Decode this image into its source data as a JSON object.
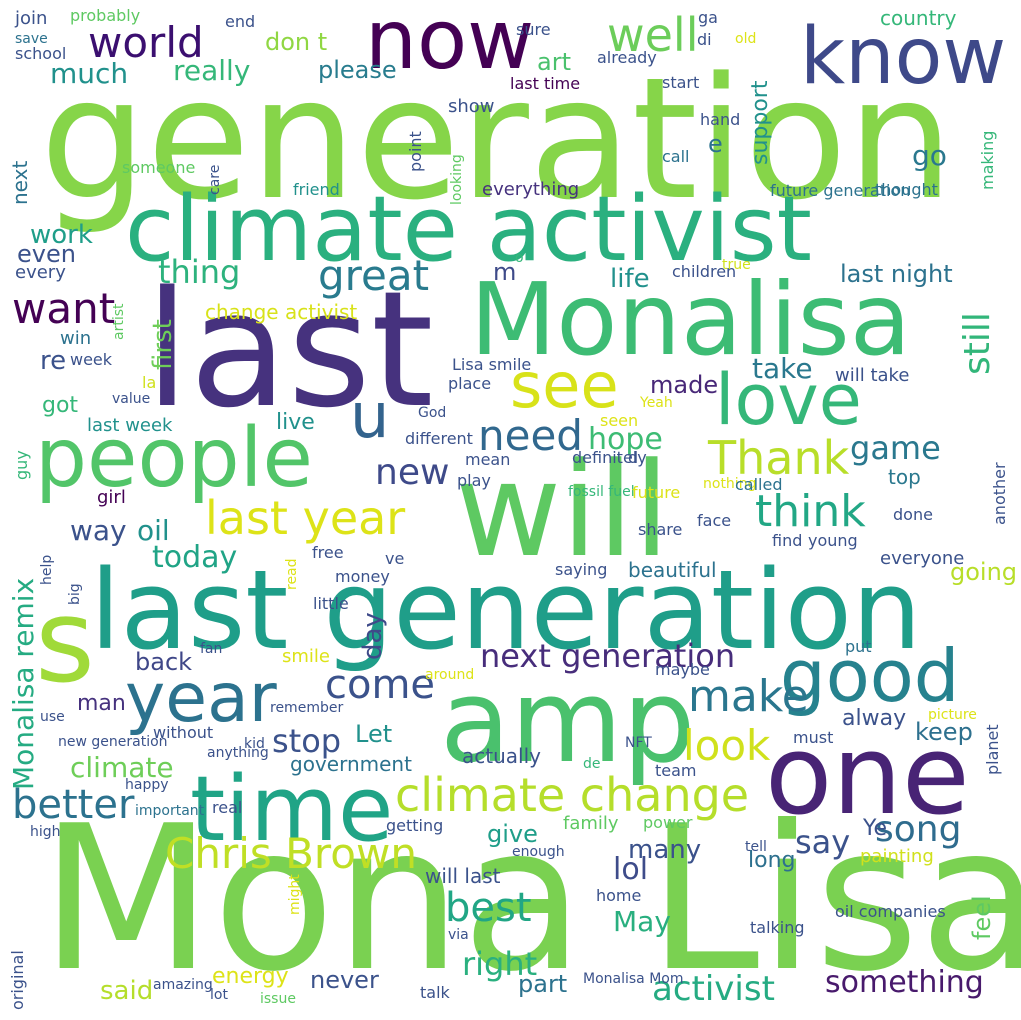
{
  "words": [
    {
      "text": "Mona Lisa",
      "color": "#7ad151"
    },
    {
      "text": "generation",
      "color": "#86d549"
    },
    {
      "text": "last",
      "color": "#46327e"
    },
    {
      "text": "will",
      "color": "#5ec962"
    },
    {
      "text": "last generation",
      "color": "#1f9e89"
    },
    {
      "text": "Monalisa",
      "color": "#3dbc74"
    },
    {
      "text": "climate activist",
      "color": "#2ab07f"
    },
    {
      "text": "one",
      "color": "#482475"
    },
    {
      "text": "amp",
      "color": "#4ac16d"
    },
    {
      "text": "now",
      "color": "#440154"
    },
    {
      "text": "know",
      "color": "#3e4989"
    },
    {
      "text": "time",
      "color": "#20a486"
    },
    {
      "text": "s",
      "color": "#a0da39"
    },
    {
      "text": "people",
      "color": "#52c569"
    },
    {
      "text": "good",
      "color": "#26828e"
    },
    {
      "text": "year",
      "color": "#2c728e"
    },
    {
      "text": "love",
      "color": "#35b779"
    },
    {
      "text": "see",
      "color": "#d8e219"
    },
    {
      "text": "u",
      "color": "#33638d"
    },
    {
      "text": "climate change",
      "color": "#b5de2b"
    },
    {
      "text": "last year",
      "color": "#dde318"
    },
    {
      "text": "Chris Brown",
      "color": "#c0df25"
    },
    {
      "text": "think",
      "color": "#22a785"
    },
    {
      "text": "make",
      "color": "#2a768e"
    },
    {
      "text": "great",
      "color": "#297b8e"
    },
    {
      "text": "look",
      "color": "#d0e11c"
    },
    {
      "text": "come",
      "color": "#3b528b"
    },
    {
      "text": "world",
      "color": "#3b0f70"
    },
    {
      "text": "well",
      "color": "#6ccd5a"
    },
    {
      "text": "Thank",
      "color": "#b8de29"
    },
    {
      "text": "need",
      "color": "#31688e"
    },
    {
      "text": "want",
      "color": "#440154"
    },
    {
      "text": "best",
      "color": "#21a685"
    },
    {
      "text": "activist",
      "color": "#25ab82"
    },
    {
      "text": "song",
      "color": "#2f6c8e"
    },
    {
      "text": "next generation",
      "color": "#472d7b"
    },
    {
      "text": "better",
      "color": "#32b67a"
    },
    {
      "text": "still",
      "color": "#2c728e"
    },
    {
      "text": "new",
      "color": "#3e4a89"
    },
    {
      "text": "stop",
      "color": "#3b528b"
    },
    {
      "text": "right",
      "color": "#2ab07f"
    },
    {
      "text": "Monalisa remix",
      "color": "#25ab82"
    },
    {
      "text": "something",
      "color": "#481a6c"
    },
    {
      "text": "game",
      "color": "#2a788e"
    },
    {
      "text": "hope",
      "color": "#3dbc74"
    },
    {
      "text": "today",
      "color": "#20a486"
    },
    {
      "text": "say",
      "color": "#3b528b"
    },
    {
      "text": "climate",
      "color": "#6ece58"
    },
    {
      "text": "lol",
      "color": "#3e4c8a"
    },
    {
      "text": "May",
      "color": "#29af7f"
    },
    {
      "text": "thing",
      "color": "#2db27d"
    },
    {
      "text": "really",
      "color": "#35b779"
    },
    {
      "text": "much",
      "color": "#21918c"
    },
    {
      "text": "please",
      "color": "#287c8e"
    },
    {
      "text": "don t",
      "color": "#90d743"
    },
    {
      "text": "many",
      "color": "#3b528b"
    },
    {
      "text": "said",
      "color": "#b5de2b"
    },
    {
      "text": "part",
      "color": "#2c728e"
    },
    {
      "text": "take",
      "color": "#2a788e"
    },
    {
      "text": "made",
      "color": "#482878"
    },
    {
      "text": "keep",
      "color": "#2d708e"
    },
    {
      "text": "back",
      "color": "#3f4788"
    },
    {
      "text": "way",
      "color": "#3b528b"
    },
    {
      "text": "oil",
      "color": "#21918c"
    },
    {
      "text": "feel",
      "color": "#5ec962"
    },
    {
      "text": "life",
      "color": "#21918c"
    },
    {
      "text": "work",
      "color": "#1f9e89"
    },
    {
      "text": "even",
      "color": "#3b528b"
    },
    {
      "text": "never",
      "color": "#3b528b"
    },
    {
      "text": "go",
      "color": "#2a788e"
    },
    {
      "text": "last night",
      "color": "#2c728e"
    },
    {
      "text": "going",
      "color": "#b8de29"
    },
    {
      "text": "day",
      "color": "#3e4a89"
    },
    {
      "text": "Let",
      "color": "#21918c"
    },
    {
      "text": "give",
      "color": "#1f9e89"
    },
    {
      "text": "got",
      "color": "#35b779"
    },
    {
      "text": "first",
      "color": "#6ece58"
    },
    {
      "text": "support",
      "color": "#21918c"
    },
    {
      "text": "art",
      "color": "#4ac16d"
    },
    {
      "text": "e",
      "color": "#2c728e"
    },
    {
      "text": "m",
      "color": "#3e4a89"
    },
    {
      "text": "re",
      "color": "#3b528b"
    },
    {
      "text": "man",
      "color": "#46327e"
    },
    {
      "text": "alway",
      "color": "#3b528b"
    },
    {
      "text": "energy",
      "color": "#dde318"
    },
    {
      "text": "long",
      "color": "#2d708e"
    },
    {
      "text": "live",
      "color": "#21918c"
    },
    {
      "text": "Ye",
      "color": "#3b528b"
    },
    {
      "text": "will last",
      "color": "#3b528b"
    },
    {
      "text": "every",
      "color": "#3b528b"
    },
    {
      "text": "win",
      "color": "#2c728e"
    },
    {
      "text": "last week",
      "color": "#21918c"
    },
    {
      "text": "change activist",
      "color": "#d8e219"
    },
    {
      "text": "will take",
      "color": "#3b528b"
    },
    {
      "text": "top",
      "color": "#2a788e"
    },
    {
      "text": "government",
      "color": "#2c728e"
    },
    {
      "text": "actually",
      "color": "#3b528b"
    },
    {
      "text": "family",
      "color": "#5ec962"
    },
    {
      "text": "painting",
      "color": "#d0e11c"
    },
    {
      "text": "smile",
      "color": "#dde318"
    },
    {
      "text": "beautiful",
      "color": "#2c728e"
    },
    {
      "text": "everyone",
      "color": "#3b528b"
    },
    {
      "text": "show",
      "color": "#3b528b"
    },
    {
      "text": "country",
      "color": "#35b779"
    },
    {
      "text": "sure",
      "color": "#3b528b"
    },
    {
      "text": "join",
      "color": "#3b528b"
    },
    {
      "text": "probably",
      "color": "#5ec962"
    },
    {
      "text": "end",
      "color": "#3b528b"
    },
    {
      "text": "save",
      "color": "#2c728e"
    },
    {
      "text": "school",
      "color": "#3b528b"
    },
    {
      "text": "ga",
      "color": "#3b528b"
    },
    {
      "text": "old",
      "color": "#dde318"
    },
    {
      "text": "already",
      "color": "#3b528b"
    },
    {
      "text": "di",
      "color": "#3b528b"
    },
    {
      "text": "start",
      "color": "#3b528b"
    },
    {
      "text": "last time",
      "color": "#440154"
    },
    {
      "text": "hand",
      "color": "#3b528b"
    },
    {
      "text": "call",
      "color": "#2c728e"
    },
    {
      "text": "point",
      "color": "#3b528b"
    },
    {
      "text": "care",
      "color": "#3b528b"
    },
    {
      "text": "friend",
      "color": "#5ec962"
    },
    {
      "text": "everything",
      "color": "#21918c"
    },
    {
      "text": "future generation",
      "color": "#46327e"
    },
    {
      "text": "thought",
      "color": "#2c728e"
    },
    {
      "text": "making",
      "color": "#2c728e"
    },
    {
      "text": "looking",
      "color": "#35b779"
    },
    {
      "text": "next",
      "color": "#2c728e"
    },
    {
      "text": "o",
      "color": "#5ec962"
    },
    {
      "text": "children",
      "color": "#5ec962"
    },
    {
      "text": "true",
      "color": "#35b779"
    },
    {
      "text": "week",
      "color": "#3b528b"
    },
    {
      "text": "Lisa smile",
      "color": "#d0e11c"
    },
    {
      "text": "place",
      "color": "#3b528b"
    },
    {
      "text": "la",
      "color": "#3b528b"
    },
    {
      "text": "value",
      "color": "#3b528b"
    },
    {
      "text": "God",
      "color": "#d0e11c"
    },
    {
      "text": "Yeah",
      "color": "#3b528b"
    },
    {
      "text": "seen",
      "color": "#3b528b"
    },
    {
      "text": "someone",
      "color": "#dde318"
    },
    {
      "text": "different",
      "color": "#dde318"
    },
    {
      "text": "definitely",
      "color": "#35b779"
    },
    {
      "text": "mean",
      "color": "#3b528b"
    },
    {
      "text": "d",
      "color": "#3b528b"
    },
    {
      "text": "play",
      "color": "#3b528b"
    },
    {
      "text": "nothing",
      "color": "#3b528b"
    },
    {
      "text": "called",
      "color": "#3b528b"
    },
    {
      "text": "girl",
      "color": "#dde318"
    },
    {
      "text": "fossil fuel",
      "color": "#2c728e"
    },
    {
      "text": "future",
      "color": "#440154"
    },
    {
      "text": "done",
      "color": "#35b779"
    },
    {
      "text": "guy",
      "color": "#dde318"
    },
    {
      "text": "share",
      "color": "#3b528b"
    },
    {
      "text": "face",
      "color": "#3b528b"
    },
    {
      "text": "find",
      "color": "#3b528b"
    },
    {
      "text": "young",
      "color": "#3b528b"
    },
    {
      "text": "help",
      "color": "#3b528b"
    },
    {
      "text": "another",
      "color": "#3b528b"
    },
    {
      "text": "free",
      "color": "#3b528b"
    },
    {
      "text": "ve",
      "color": "#dde318"
    },
    {
      "text": "money",
      "color": "#3b528b"
    },
    {
      "text": "artist",
      "color": "#3b528b"
    },
    {
      "text": "saying",
      "color": "#3b528b"
    },
    {
      "text": "little",
      "color": "#3b528b"
    },
    {
      "text": "fan",
      "color": "#3b528b"
    },
    {
      "text": "put",
      "color": "#3b528b"
    },
    {
      "text": "maybe",
      "color": "#3b528b"
    },
    {
      "text": "around",
      "color": "#2c728e"
    },
    {
      "text": "use",
      "color": "#3b528b"
    },
    {
      "text": "remember",
      "color": "#dde318"
    },
    {
      "text": "picture",
      "color": "#3b528b"
    },
    {
      "text": "new generation",
      "color": "#3b528b"
    },
    {
      "text": "without",
      "color": "#dde318"
    },
    {
      "text": "must",
      "color": "#3b528b"
    },
    {
      "text": "planet",
      "color": "#3b528b"
    },
    {
      "text": "anything",
      "color": "#3b528b"
    },
    {
      "text": "kid",
      "color": "#3b528b"
    },
    {
      "text": "NFT",
      "color": "#3b528b"
    },
    {
      "text": "de",
      "color": "#3b528b"
    },
    {
      "text": "team",
      "color": "#3b528b"
    },
    {
      "text": "happy",
      "color": "#35b779"
    },
    {
      "text": "important",
      "color": "#3b528b"
    },
    {
      "text": "real",
      "color": "#3b528b"
    },
    {
      "text": "power",
      "color": "#2c728e"
    },
    {
      "text": "high",
      "color": "#3b528b"
    },
    {
      "text": "getting",
      "color": "#5ec962"
    },
    {
      "text": "tell",
      "color": "#3b528b"
    },
    {
      "text": "enough",
      "color": "#3b528b"
    },
    {
      "text": "read",
      "color": "#3b528b"
    },
    {
      "text": "home",
      "color": "#3b528b"
    },
    {
      "text": "oil companies",
      "color": "#3b528b"
    },
    {
      "text": "talking",
      "color": "#3b528b"
    },
    {
      "text": "via",
      "color": "#3b528b"
    },
    {
      "text": "big",
      "color": "#3b528b"
    },
    {
      "text": "amazing",
      "color": "#3b528b"
    },
    {
      "text": "lot",
      "color": "#dde318"
    },
    {
      "text": "issue",
      "color": "#3b528b"
    },
    {
      "text": "talk",
      "color": "#3b528b"
    },
    {
      "text": "Monalisa Mom",
      "color": "#5ec962"
    },
    {
      "text": "original",
      "color": "#3b528b"
    },
    {
      "text": "might",
      "color": "#3b528b"
    }
  ]
}
